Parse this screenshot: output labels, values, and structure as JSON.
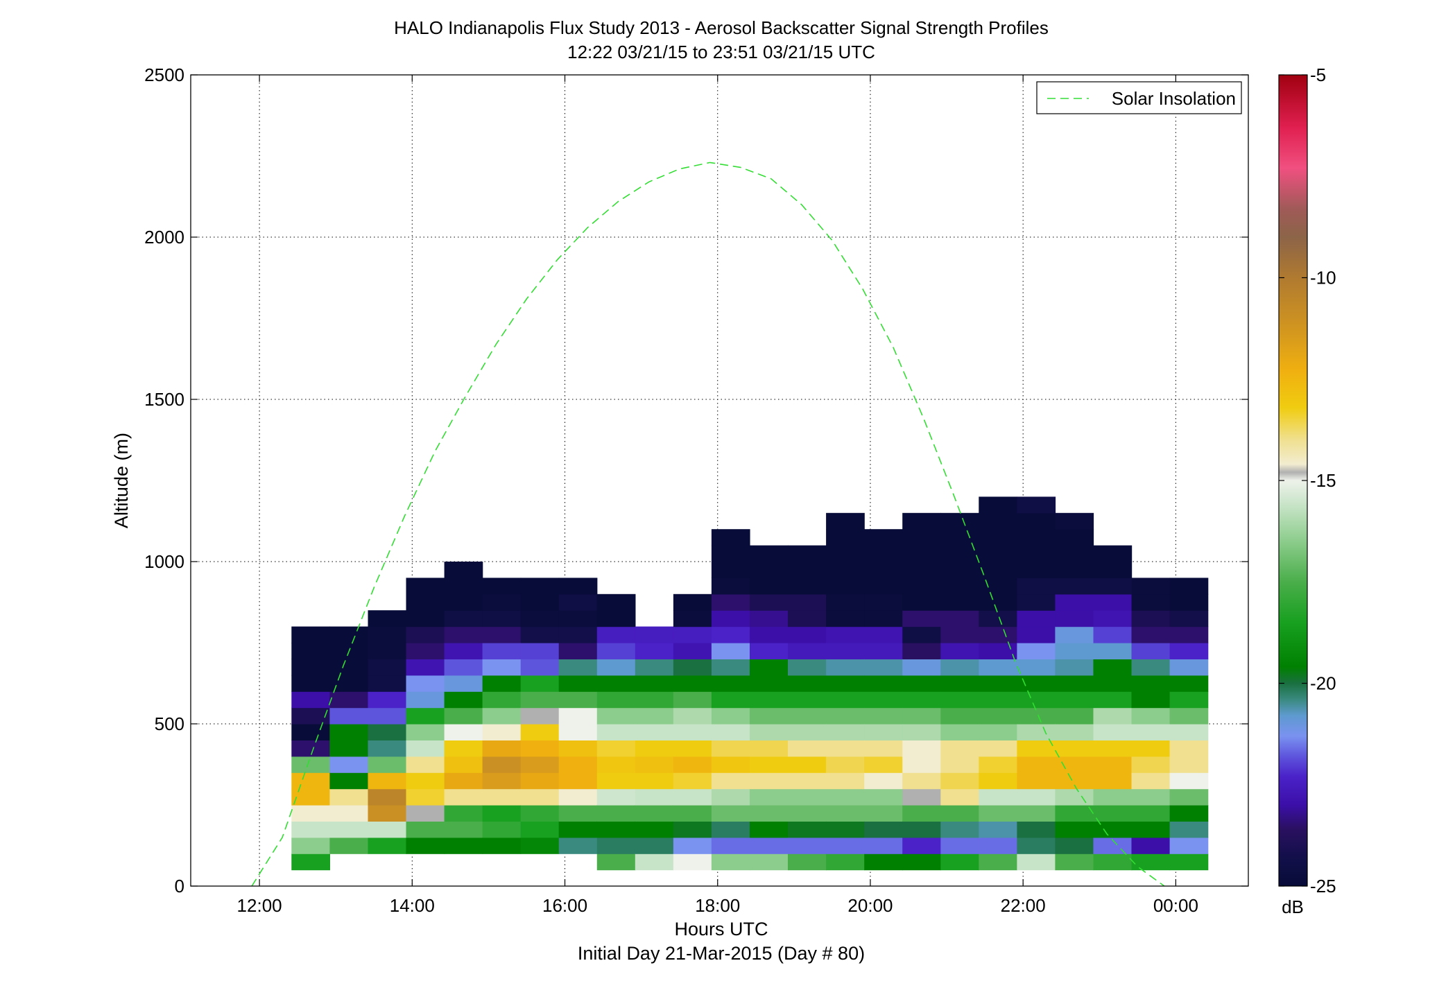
{
  "chart_data": {
    "type": "heatmap",
    "title": "HALO Indianapolis Flux Study 2013 - Aerosol Backscatter Signal Strength Profiles",
    "subtitle": "12:22 03/21/15 to 23:51 03/21/15  UTC",
    "xlabel": "Hours UTC",
    "xlabel2": "Initial Day 21-Mar-2015 (Day # 80)",
    "ylabel": "Altitude (m)",
    "x_unit": "hours UTC",
    "xlim": [
      11.1,
      24.95
    ],
    "ylim": [
      0,
      2500
    ],
    "x_ticks": [
      {
        "value": 12,
        "label": "12:00"
      },
      {
        "value": 14,
        "label": "14:00"
      },
      {
        "value": 16,
        "label": "16:00"
      },
      {
        "value": 18,
        "label": "18:00"
      },
      {
        "value": 20,
        "label": "20:00"
      },
      {
        "value": 22,
        "label": "22:00"
      },
      {
        "value": 24,
        "label": "00:00"
      }
    ],
    "y_ticks": [
      {
        "value": 0,
        "label": "0"
      },
      {
        "value": 500,
        "label": "500"
      },
      {
        "value": 1000,
        "label": "1000"
      },
      {
        "value": 1500,
        "label": "1500"
      },
      {
        "value": 2000,
        "label": "2000"
      },
      {
        "value": 2500,
        "label": "2500"
      }
    ],
    "grid": true,
    "legend": {
      "position": "top-right",
      "entries": [
        {
          "label": "Solar Insolation",
          "color": "#33dd33",
          "style": "dashed"
        }
      ]
    },
    "colorbar": {
      "label": "dB",
      "range": [
        -25,
        -5
      ],
      "ticks": [
        {
          "value": -5,
          "label": "-5"
        },
        {
          "value": -10,
          "label": "-10"
        },
        {
          "value": -15,
          "label": "-15"
        },
        {
          "value": -20,
          "label": "-20"
        },
        {
          "value": -25,
          "label": "-25"
        }
      ],
      "stops": [
        {
          "v": -25,
          "c": "#080c38"
        },
        {
          "v": -24.3,
          "c": "#120f4a"
        },
        {
          "v": -23.6,
          "c": "#2a1060"
        },
        {
          "v": -23.0,
          "c": "#3b0fa8"
        },
        {
          "v": -22.3,
          "c": "#4a22c8"
        },
        {
          "v": -21.8,
          "c": "#5e55dd"
        },
        {
          "v": -21.3,
          "c": "#7a92f0"
        },
        {
          "v": -20.8,
          "c": "#5e9ad0"
        },
        {
          "v": -20.4,
          "c": "#3a8a80"
        },
        {
          "v": -20.0,
          "c": "#1a7040"
        },
        {
          "v": -19.6,
          "c": "#008000"
        },
        {
          "v": -18.5,
          "c": "#18a020"
        },
        {
          "v": -17.5,
          "c": "#4aae4a"
        },
        {
          "v": -16.5,
          "c": "#8ccc8c"
        },
        {
          "v": -15.6,
          "c": "#c8e4c8"
        },
        {
          "v": -15.0,
          "c": "#eef2ea"
        },
        {
          "v": -14.8,
          "c": "#b0b0b0"
        },
        {
          "v": -14.6,
          "c": "#f2ecd0"
        },
        {
          "v": -14.0,
          "c": "#f0e090"
        },
        {
          "v": -13.2,
          "c": "#f0cc10"
        },
        {
          "v": -12.3,
          "c": "#f0b010"
        },
        {
          "v": -11.2,
          "c": "#d09420"
        },
        {
          "v": -10.0,
          "c": "#b07a30"
        },
        {
          "v": -9.0,
          "c": "#8c6448"
        },
        {
          "v": -8.3,
          "c": "#a05a58"
        },
        {
          "v": -7.3,
          "c": "#f05080"
        },
        {
          "v": -6.3,
          "c": "#e02050"
        },
        {
          "v": -5.0,
          "c": "#a00010"
        }
      ]
    },
    "time_bins_start": [
      12.42,
      12.92,
      13.42,
      13.92,
      14.42,
      14.92,
      15.42,
      15.92,
      16.42,
      16.92,
      17.42,
      17.92,
      18.42,
      18.92,
      19.42,
      19.92,
      20.42,
      20.92,
      21.42,
      21.92,
      22.42,
      22.92,
      23.42,
      23.92
    ],
    "time_bin_width": 0.5,
    "altitude_bin_height": 50,
    "altitude_bins_start": [
      50,
      100,
      150,
      200,
      250,
      300,
      350,
      400,
      450,
      500,
      550,
      600,
      650,
      700,
      750,
      800,
      850,
      900,
      950,
      1000,
      1050,
      1100,
      1150
    ],
    "profiles_db": [
      [
        -18.5,
        -16.5,
        -15.6,
        -14.6,
        -12.5,
        -12.5,
        -17.0,
        -23.5,
        -25.0,
        -24.0,
        -23.0,
        -25.0,
        -25.0,
        -25.0,
        -25.0
      ],
      [
        null,
        -17.5,
        -15.6,
        -14.6,
        -14.0,
        -19.6,
        -21.3,
        -19.6,
        -19.6,
        -21.8,
        -23.5,
        -25.0,
        -25.0,
        -25.0,
        -25.0
      ],
      [
        null,
        -18.5,
        -15.6,
        -11.0,
        -10.5,
        -12.5,
        -17.0,
        -20.4,
        -20.0,
        -21.8,
        -22.3,
        -24.5,
        -24.5,
        -24.8,
        -24.8,
        -25.0
      ],
      [
        null,
        -19.6,
        -17.5,
        -14.8,
        -13.4,
        -13.2,
        -14.0,
        -15.6,
        -16.5,
        -18.5,
        -21.0,
        -21.3,
        -22.8,
        -23.5,
        -24.0,
        -25.0,
        -25.0,
        -25.0
      ],
      [
        null,
        -19.6,
        -17.5,
        -18.0,
        -14.0,
        -12.0,
        -12.8,
        -13.2,
        -15.0,
        -17.5,
        -19.6,
        -21.0,
        -21.8,
        -22.8,
        -23.5,
        -24.5,
        -25.0,
        -25.0,
        -25.0
      ],
      [
        null,
        -19.6,
        -18.0,
        -18.5,
        -14.0,
        -11.5,
        -11.0,
        -12.0,
        -14.6,
        -16.5,
        -18.0,
        -19.6,
        -21.3,
        -22.0,
        -23.5,
        -24.5,
        -24.8,
        -25.0
      ],
      [
        null,
        -19.4,
        -18.5,
        -18.0,
        -14.0,
        -12.0,
        -11.5,
        -12.3,
        -13.2,
        -14.8,
        -17.5,
        -18.5,
        -21.8,
        -22.0,
        -24.3,
        -24.8,
        -25.0,
        -25.0
      ],
      [
        null,
        -20.4,
        -19.6,
        -17.5,
        -14.6,
        -12.3,
        -12.3,
        -12.8,
        -15.0,
        -15.0,
        -17.5,
        -19.6,
        -20.4,
        -23.5,
        -24.3,
        -24.8,
        -24.5,
        -25.0
      ],
      [
        -17.5,
        -20.2,
        -19.6,
        -17.5,
        -15.5,
        -13.2,
        -13.0,
        -13.4,
        -15.6,
        -16.5,
        -18.0,
        -19.6,
        -20.8,
        -22.0,
        -22.5,
        -25.0,
        -25.0
      ],
      [
        -15.6,
        -20.2,
        -19.6,
        -17.5,
        -15.6,
        -13.2,
        -12.8,
        -13.2,
        -15.6,
        -16.5,
        -18.0,
        -19.6,
        -20.4,
        -22.3,
        -22.5
      ],
      [
        -15.0,
        -21.3,
        -19.8,
        -17.5,
        -15.6,
        -13.4,
        -12.5,
        -13.2,
        -15.6,
        -16.0,
        -17.5,
        -19.6,
        -20.0,
        -22.8,
        -22.5,
        -24.8,
        -25.0
      ],
      [
        -16.5,
        -21.6,
        -20.2,
        -17.0,
        -16.0,
        -14.0,
        -13.0,
        -13.6,
        -15.6,
        -16.5,
        -18.5,
        -19.6,
        -20.4,
        -21.3,
        -22.3,
        -23.0,
        -23.5,
        -24.8,
        -25.0,
        -25.0,
        -25.0
      ],
      [
        -16.5,
        -21.6,
        -19.6,
        -17.0,
        -16.5,
        -14.0,
        -13.2,
        -13.6,
        -16.0,
        -17.0,
        -18.5,
        -19.6,
        -19.6,
        -22.3,
        -23.0,
        -23.2,
        -24.0,
        -25.0,
        -25.0,
        -25.0
      ],
      [
        -17.5,
        -21.6,
        -19.8,
        -17.0,
        -16.5,
        -14.0,
        -13.2,
        -14.0,
        -16.0,
        -17.0,
        -18.5,
        -19.6,
        -20.4,
        -22.6,
        -23.0,
        -24.0,
        -24.0,
        -25.0,
        -25.0,
        -25.0
      ],
      [
        -18.0,
        -21.6,
        -19.8,
        -17.0,
        -16.5,
        -14.0,
        -13.6,
        -14.0,
        -16.0,
        -17.0,
        -18.5,
        -19.6,
        -20.6,
        -22.6,
        -22.8,
        -24.8,
        -24.8,
        -25.0,
        -25.0,
        -25.0,
        -25.0,
        -25.0
      ],
      [
        -19.6,
        -21.6,
        -20.0,
        -17.0,
        -16.5,
        -14.6,
        -13.4,
        -14.0,
        -16.0,
        -17.0,
        -18.5,
        -19.6,
        -20.6,
        -22.6,
        -22.8,
        -24.8,
        -24.8,
        -25.0,
        -25.0,
        -25.0,
        -25.0
      ],
      [
        -19.6,
        -22.3,
        -20.0,
        -17.5,
        -14.8,
        -14.0,
        -14.6,
        -14.6,
        -16.0,
        -17.0,
        -18.5,
        -19.6,
        -21.0,
        -23.6,
        -24.5,
        -23.5,
        -25.0,
        -25.0,
        -25.0,
        -25.0,
        -25.0,
        -25.0
      ],
      [
        -18.5,
        -21.6,
        -20.4,
        -17.5,
        -14.0,
        -13.6,
        -14.0,
        -14.0,
        -16.5,
        -17.5,
        -18.5,
        -19.6,
        -20.6,
        -22.8,
        -23.5,
        -23.5,
        -25.0,
        -25.0,
        -25.0,
        -25.0,
        -25.0,
        -25.0
      ],
      [
        -17.5,
        -21.6,
        -20.6,
        -17.0,
        -15.6,
        -13.2,
        -13.4,
        -14.0,
        -16.5,
        -17.5,
        -18.5,
        -19.6,
        -20.8,
        -23.0,
        -23.5,
        -24.3,
        -25.0,
        -25.0,
        -25.0,
        -25.0,
        -25.0,
        -25.0,
        -25.0
      ],
      [
        -15.6,
        -20.2,
        -20.0,
        -17.0,
        -15.6,
        -12.5,
        -12.5,
        -13.2,
        -16.0,
        -17.5,
        -18.5,
        -19.6,
        -20.8,
        -21.3,
        -23.0,
        -23.0,
        -24.5,
        -24.5,
        -25.0,
        -25.0,
        -25.0,
        -25.0,
        -24.5
      ],
      [
        -17.5,
        -20.0,
        -19.6,
        -18.0,
        -16.0,
        -12.5,
        -12.5,
        -13.2,
        -16.0,
        -17.5,
        -18.5,
        -19.6,
        -20.6,
        -20.8,
        -21.0,
        -23.0,
        -23.0,
        -24.5,
        -25.0,
        -25.0,
        -25.0,
        -24.8
      ],
      [
        -18.0,
        -21.6,
        -19.6,
        -18.0,
        -16.5,
        -12.5,
        -12.5,
        -13.2,
        -15.6,
        -16.0,
        -18.5,
        -19.6,
        -19.6,
        -20.8,
        -22.0,
        -22.8,
        -23.0,
        -24.5,
        -25.0,
        -25.0
      ],
      [
        -18.5,
        -23.0,
        -19.6,
        -18.0,
        -16.5,
        -14.0,
        -13.6,
        -13.2,
        -15.6,
        -16.5,
        -19.6,
        -19.6,
        -20.4,
        -22.0,
        -23.5,
        -24.0,
        -24.8,
        -24.8
      ],
      [
        -18.5,
        -21.3,
        -20.4,
        -19.6,
        -17.0,
        -15.0,
        -14.0,
        -14.0,
        -15.6,
        -17.0,
        -18.5,
        -19.6,
        -21.0,
        -22.3,
        -23.5,
        -24.3,
        -25.0,
        -25.0
      ]
    ],
    "solar_insolation": {
      "label": "Solar Insolation",
      "x": [
        11.9,
        12.3,
        12.7,
        13.1,
        13.5,
        13.9,
        14.3,
        14.7,
        15.1,
        15.5,
        15.9,
        16.3,
        16.7,
        17.1,
        17.5,
        17.9,
        18.3,
        18.7,
        19.1,
        19.5,
        19.9,
        20.3,
        20.7,
        21.1,
        21.5,
        21.9,
        22.3,
        22.7,
        23.1,
        23.5,
        23.85
      ],
      "y": [
        0,
        150,
        420,
        680,
        920,
        1140,
        1340,
        1510,
        1670,
        1810,
        1930,
        2030,
        2110,
        2170,
        2210,
        2230,
        2215,
        2180,
        2100,
        1990,
        1840,
        1660,
        1440,
        1200,
        950,
        690,
        470,
        300,
        160,
        60,
        0
      ]
    }
  }
}
